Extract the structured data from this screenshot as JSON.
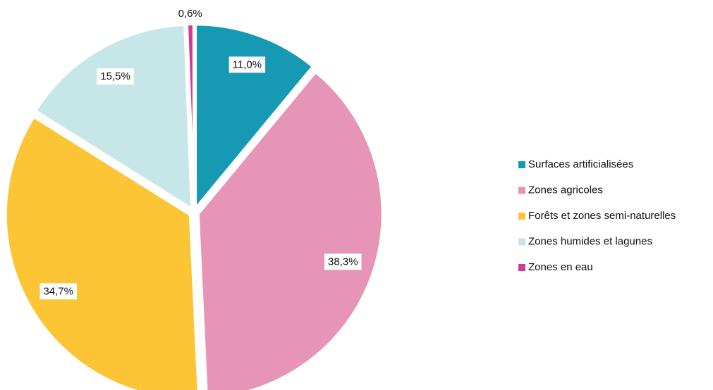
{
  "chart_data": {
    "type": "pie",
    "categories": [
      "Surfaces artificialisées",
      "Zones agricoles",
      "Forêts et zones semi-naturelles",
      "Zones humides et lagunes",
      "Zones en eau"
    ],
    "values": [
      11.0,
      38.3,
      34.7,
      15.5,
      0.6
    ],
    "value_labels": [
      "11,0%",
      "38,3%",
      "34,7%",
      "15,5%",
      "0,6%"
    ],
    "colors": [
      "#1699b3",
      "#e795b6",
      "#fbc535",
      "#c6e6e8",
      "#d0399a"
    ],
    "legend": "right"
  }
}
